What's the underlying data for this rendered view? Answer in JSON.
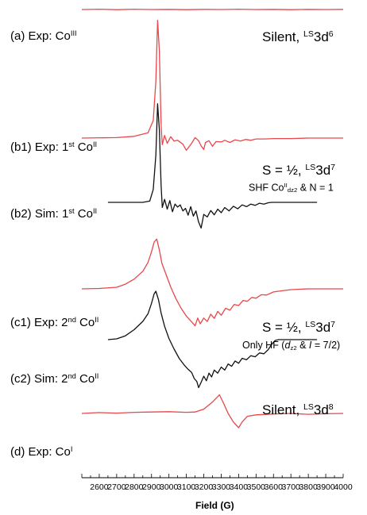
{
  "chart_data": {
    "type": "line",
    "xlabel": "Field (G)",
    "xlim": [
      2500,
      4000
    ],
    "xticks": [
      2600,
      2700,
      2800,
      2900,
      3000,
      3100,
      3200,
      3300,
      3400,
      3500,
      3600,
      3700,
      3800,
      3900,
      4000
    ],
    "tick_labels": [
      "2600",
      "2700",
      "2800",
      "2900",
      "3000",
      "3100",
      "3200",
      "3300",
      "3400",
      "3500",
      "3600",
      "3700",
      "3800",
      "3900",
      "4000"
    ],
    "grid": false,
    "legend": "none",
    "trace_labels": {
      "a": {
        "main": "(a) Exp: Co",
        "sup": "III"
      },
      "b1": {
        "main": "(b1) Exp: 1",
        "ord": "st",
        "mid": " Co",
        "sup": "II"
      },
      "b2": {
        "main": "(b2) Sim: 1",
        "ord": "st",
        "mid": " Co",
        "sup": "II"
      },
      "c1": {
        "main": "(c1) Exp: 2",
        "ord": "nd",
        "mid": " Co",
        "sup": "II"
      },
      "c2": {
        "main": "(c2) Sim: 2",
        "ord": "nd",
        "mid": " Co",
        "sup": "II"
      },
      "d": {
        "main": "(d) Exp: Co",
        "sup": "I"
      }
    },
    "annotations": {
      "silent1": {
        "main": "Silent, ",
        "sup": "LS",
        "tail": "3d",
        "sup2": "6"
      },
      "spin1": {
        "main": "S = ½, ",
        "sup": "LS",
        "tail": "3d",
        "sup2": "7"
      },
      "shf": {
        "main": "SHF Co",
        "sup": "II",
        "sub": "dz2",
        "tail": " & N = 1"
      },
      "spin2": {
        "main": "S = ½, ",
        "sup": "LS",
        "tail": "3d",
        "sup2": "7"
      },
      "hf": {
        "pre": "Only HF (",
        "d": "d",
        "sub": "z2",
        "mid": " & ",
        "i": "I",
        "tail": " = 7/2)"
      },
      "silent2": {
        "main": "Silent, ",
        "sup": "LS",
        "tail": "3d",
        "sup2": "8"
      }
    },
    "colors": {
      "experiment": "#e8474b",
      "simulation": "#111111"
    },
    "series": [
      {
        "id": "a",
        "kind": "experiment",
        "points": [
          [
            2500,
            0
          ],
          [
            2600,
            0.2
          ],
          [
            2700,
            -0.1
          ],
          [
            2800,
            0.2
          ],
          [
            2900,
            0
          ],
          [
            3000,
            0.1
          ],
          [
            3100,
            -0.1
          ],
          [
            3200,
            0.1
          ],
          [
            3300,
            0
          ],
          [
            3400,
            0.2
          ],
          [
            3500,
            0
          ],
          [
            3600,
            0.1
          ],
          [
            3700,
            -0.1
          ],
          [
            3800,
            0.1
          ],
          [
            3900,
            0
          ],
          [
            4000,
            0.1
          ]
        ]
      },
      {
        "id": "b1",
        "kind": "experiment",
        "points": [
          [
            2500,
            0
          ],
          [
            2700,
            0.1
          ],
          [
            2800,
            0.4
          ],
          [
            2880,
            1.2
          ],
          [
            2910,
            4
          ],
          [
            2925,
            13
          ],
          [
            2935,
            27
          ],
          [
            2945,
            20
          ],
          [
            2955,
            3
          ],
          [
            2962,
            -1.5
          ],
          [
            2975,
            0.6
          ],
          [
            2990,
            -1.2
          ],
          [
            3010,
            0.3
          ],
          [
            3030,
            -0.7
          ],
          [
            3050,
            -0.5
          ],
          [
            3080,
            -1.4
          ],
          [
            3100,
            -2.8
          ],
          [
            3130,
            -1.2
          ],
          [
            3150,
            0.1
          ],
          [
            3170,
            -0.6
          ],
          [
            3185,
            -1.8
          ],
          [
            3200,
            -2.6
          ],
          [
            3210,
            -1.0
          ],
          [
            3230,
            -0.6
          ],
          [
            3250,
            -1.9
          ],
          [
            3270,
            -0.8
          ],
          [
            3300,
            -0.9
          ],
          [
            3320,
            -0.5
          ],
          [
            3350,
            -1.0
          ],
          [
            3380,
            -0.4
          ],
          [
            3410,
            -0.7
          ],
          [
            3440,
            -0.3
          ],
          [
            3470,
            -0.5
          ],
          [
            3500,
            -0.2
          ],
          [
            3550,
            -0.2
          ],
          [
            3600,
            -0.1
          ],
          [
            3700,
            -0.1
          ],
          [
            3800,
            0
          ],
          [
            3900,
            0
          ],
          [
            4000,
            0
          ]
        ]
      },
      {
        "id": "b2",
        "kind": "simulation",
        "points": [
          [
            2650,
            0
          ],
          [
            2850,
            0
          ],
          [
            2890,
            0.3
          ],
          [
            2910,
            3
          ],
          [
            2925,
            11
          ],
          [
            2935,
            23
          ],
          [
            2945,
            17
          ],
          [
            2955,
            4
          ],
          [
            2962,
            -1.2
          ],
          [
            2975,
            0.7
          ],
          [
            2990,
            -1.6
          ],
          [
            3005,
            0.4
          ],
          [
            3020,
            -2.2
          ],
          [
            3035,
            -0.4
          ],
          [
            3050,
            -1.1
          ],
          [
            3065,
            -0.6
          ],
          [
            3080,
            -2.0
          ],
          [
            3095,
            -1.4
          ],
          [
            3110,
            -3.0
          ],
          [
            3125,
            -1.0
          ],
          [
            3140,
            -3.2
          ],
          [
            3155,
            -2.0
          ],
          [
            3170,
            -4.6
          ],
          [
            3185,
            -6.0
          ],
          [
            3200,
            -2.8
          ],
          [
            3220,
            -3.4
          ],
          [
            3240,
            -1.9
          ],
          [
            3260,
            -2.9
          ],
          [
            3280,
            -1.6
          ],
          [
            3300,
            -2.4
          ],
          [
            3320,
            -1.2
          ],
          [
            3345,
            -2.0
          ],
          [
            3370,
            -0.9
          ],
          [
            3395,
            -1.5
          ],
          [
            3420,
            -0.6
          ],
          [
            3445,
            -1.0
          ],
          [
            3470,
            -0.4
          ],
          [
            3495,
            -0.7
          ],
          [
            3520,
            -0.2
          ],
          [
            3545,
            -0.4
          ],
          [
            3570,
            -0.1
          ],
          [
            3590,
            0
          ],
          [
            3850,
            0
          ]
        ]
      },
      {
        "id": "c1",
        "kind": "experiment",
        "points": [
          [
            2500,
            0
          ],
          [
            2600,
            0.1
          ],
          [
            2700,
            0.4
          ],
          [
            2750,
            1.2
          ],
          [
            2800,
            2.5
          ],
          [
            2850,
            4.5
          ],
          [
            2880,
            6.8
          ],
          [
            2900,
            9.5
          ],
          [
            2915,
            12
          ],
          [
            2930,
            12.8
          ],
          [
            2945,
            10
          ],
          [
            2960,
            6.5
          ],
          [
            2985,
            3.5
          ],
          [
            3010,
            0.5
          ],
          [
            3040,
            -2.5
          ],
          [
            3070,
            -5
          ],
          [
            3100,
            -7
          ],
          [
            3130,
            -8.5
          ],
          [
            3150,
            -9.5
          ],
          [
            3165,
            -7.5
          ],
          [
            3180,
            -9
          ],
          [
            3200,
            -7.5
          ],
          [
            3220,
            -8.4
          ],
          [
            3240,
            -6.5
          ],
          [
            3260,
            -7.6
          ],
          [
            3280,
            -5.8
          ],
          [
            3300,
            -6.8
          ],
          [
            3325,
            -5
          ],
          [
            3350,
            -5.5
          ],
          [
            3375,
            -4
          ],
          [
            3400,
            -4.3
          ],
          [
            3425,
            -3
          ],
          [
            3450,
            -3.2
          ],
          [
            3475,
            -2.2
          ],
          [
            3500,
            -2.4
          ],
          [
            3530,
            -1.5
          ],
          [
            3560,
            -1.6
          ],
          [
            3600,
            -0.8
          ],
          [
            3650,
            -0.5
          ],
          [
            3700,
            -0.2
          ],
          [
            3800,
            0
          ],
          [
            4000,
            0
          ]
        ]
      },
      {
        "id": "c2",
        "kind": "simulation",
        "points": [
          [
            2650,
            0
          ],
          [
            2700,
            0.2
          ],
          [
            2750,
            1
          ],
          [
            2800,
            2.6
          ],
          [
            2850,
            4.8
          ],
          [
            2880,
            6.8
          ],
          [
            2900,
            9.5
          ],
          [
            2915,
            12
          ],
          [
            2925,
            12.7
          ],
          [
            2940,
            10.5
          ],
          [
            2955,
            7
          ],
          [
            2975,
            3.5
          ],
          [
            3000,
            0.3
          ],
          [
            3030,
            -2.5
          ],
          [
            3060,
            -5
          ],
          [
            3090,
            -6.8
          ],
          [
            3110,
            -7.8
          ],
          [
            3130,
            -8.6
          ],
          [
            3145,
            -10.2
          ],
          [
            3160,
            -11
          ],
          [
            3170,
            -12.6
          ],
          [
            3185,
            -11.2
          ],
          [
            3200,
            -9.6
          ],
          [
            3215,
            -10.8
          ],
          [
            3230,
            -8.8
          ],
          [
            3245,
            -9.8
          ],
          [
            3260,
            -8
          ],
          [
            3280,
            -8.8
          ],
          [
            3300,
            -7.2
          ],
          [
            3320,
            -8
          ],
          [
            3340,
            -6.4
          ],
          [
            3360,
            -7
          ],
          [
            3380,
            -5.6
          ],
          [
            3400,
            -6.2
          ],
          [
            3420,
            -4.9
          ],
          [
            3445,
            -5.3
          ],
          [
            3470,
            -4.2
          ],
          [
            3495,
            -4.5
          ],
          [
            3520,
            -3.5
          ],
          [
            3545,
            -3.7
          ],
          [
            3570,
            -2.6
          ],
          [
            3590,
            -1.2
          ],
          [
            3610,
            -0.2
          ],
          [
            3630,
            0
          ],
          [
            3850,
            0
          ]
        ]
      },
      {
        "id": "d",
        "kind": "experiment",
        "points": [
          [
            2500,
            0
          ],
          [
            2600,
            0.3
          ],
          [
            2700,
            0.1
          ],
          [
            2800,
            0.4
          ],
          [
            2900,
            0.5
          ],
          [
            3000,
            0.6
          ],
          [
            3100,
            0.4
          ],
          [
            3150,
            0.5
          ],
          [
            3200,
            1.5
          ],
          [
            3250,
            4
          ],
          [
            3290,
            6.5
          ],
          [
            3310,
            4
          ],
          [
            3340,
            0
          ],
          [
            3370,
            -3
          ],
          [
            3400,
            -5
          ],
          [
            3420,
            -3
          ],
          [
            3450,
            -1
          ],
          [
            3500,
            -0.5
          ],
          [
            3600,
            -0.2
          ],
          [
            3700,
            0
          ],
          [
            3800,
            -0.3
          ],
          [
            3900,
            -0.1
          ],
          [
            4000,
            0
          ]
        ]
      }
    ]
  }
}
